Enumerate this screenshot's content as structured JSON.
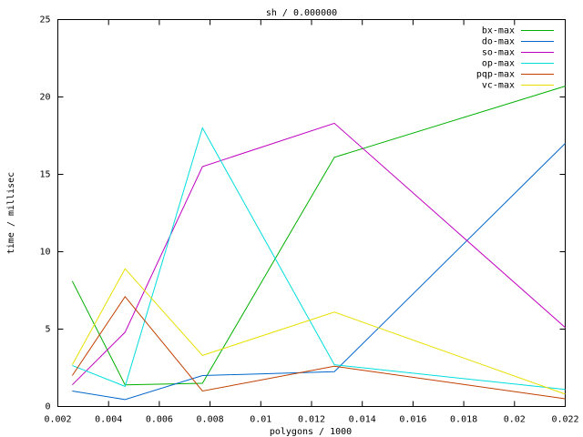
{
  "chart_data": {
    "type": "line",
    "title": "sh / 0.000000",
    "x_label": "polygons / 1000",
    "y_label": "time / millisec",
    "x": [
      0.00257,
      0.00465,
      0.0077,
      0.0129,
      0.022
    ],
    "series": [
      {
        "name": "bx-max",
        "color": "#00b000",
        "values": [
          8.1,
          1.4,
          1.5,
          16.1,
          20.7
        ]
      },
      {
        "name": "do-max",
        "color": "#0066cc",
        "values": [
          1.0,
          0.45,
          2.0,
          2.25,
          17.0
        ]
      },
      {
        "name": "so-max",
        "color": "#c000c0",
        "values": [
          1.4,
          4.8,
          15.5,
          18.3,
          5.1
        ]
      },
      {
        "name": "op-max",
        "color": "#00dddd",
        "values": [
          2.65,
          1.3,
          18.0,
          2.7,
          1.1
        ]
      },
      {
        "name": "pqp-max",
        "color": "#c04000",
        "values": [
          2.0,
          7.1,
          1.0,
          2.6,
          0.5
        ]
      },
      {
        "name": "vc-max",
        "color": "#e8e000",
        "values": [
          2.7,
          8.9,
          3.3,
          6.1,
          0.8
        ]
      }
    ],
    "xlim": [
      0.002,
      0.022
    ],
    "xticks": [
      0.002,
      0.004,
      0.006,
      0.008,
      0.01,
      0.012,
      0.014,
      0.016,
      0.018,
      0.02,
      0.022
    ],
    "ylim": [
      0,
      25
    ],
    "yticks": [
      0,
      5,
      10,
      15,
      20,
      25
    ],
    "grid": false,
    "legend": "top-right"
  }
}
